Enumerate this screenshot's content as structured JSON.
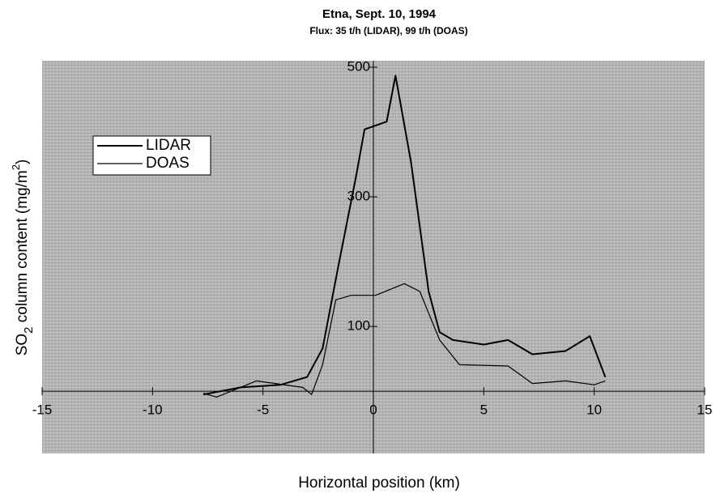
{
  "chart_data": {
    "type": "line",
    "title": "Etna, Sept. 10, 1994",
    "subtitle": "Flux:  35 t/h (LIDAR), 99 t/h (DOAS)",
    "xlabel": "Horizontal position (km)",
    "ylabel_parts": [
      "SO",
      "2",
      " column content (mg/m",
      "2",
      ")"
    ],
    "xlim": [
      -15,
      15
    ],
    "xticks": [
      -15,
      -10,
      -5,
      0,
      5,
      10,
      15
    ],
    "ylim": [
      -96,
      510
    ],
    "yticks": [
      100,
      300,
      500
    ],
    "legend": "upper left",
    "series": [
      {
        "name": "LIDAR",
        "color": "#000000",
        "x": [
          -7.7,
          -6,
          -4.2,
          -3,
          -2.3,
          -1.6,
          -0.8,
          -0.4,
          0.6,
          1,
          1.7,
          2.5,
          3,
          3.6,
          5,
          6.1,
          7.2,
          8.7,
          9.8,
          10.5
        ],
        "values": [
          -5,
          6,
          10,
          22,
          66,
          191,
          329,
          404,
          416,
          487,
          354,
          154,
          91,
          79,
          72,
          79,
          57,
          62,
          85,
          22
        ]
      },
      {
        "name": "DOAS",
        "color": "#000000",
        "x": [
          -7.7,
          -7.1,
          -5.3,
          -3.2,
          -2.8,
          -2.3,
          -1.7,
          -1,
          0.1,
          1.4,
          2.1,
          3,
          3.9,
          6.1,
          7.2,
          8.7,
          10,
          10.5
        ],
        "values": [
          -3,
          -9,
          16,
          6,
          -5,
          41,
          141,
          148,
          148,
          166,
          154,
          79,
          41,
          39,
          12,
          16,
          10,
          16
        ]
      }
    ]
  }
}
